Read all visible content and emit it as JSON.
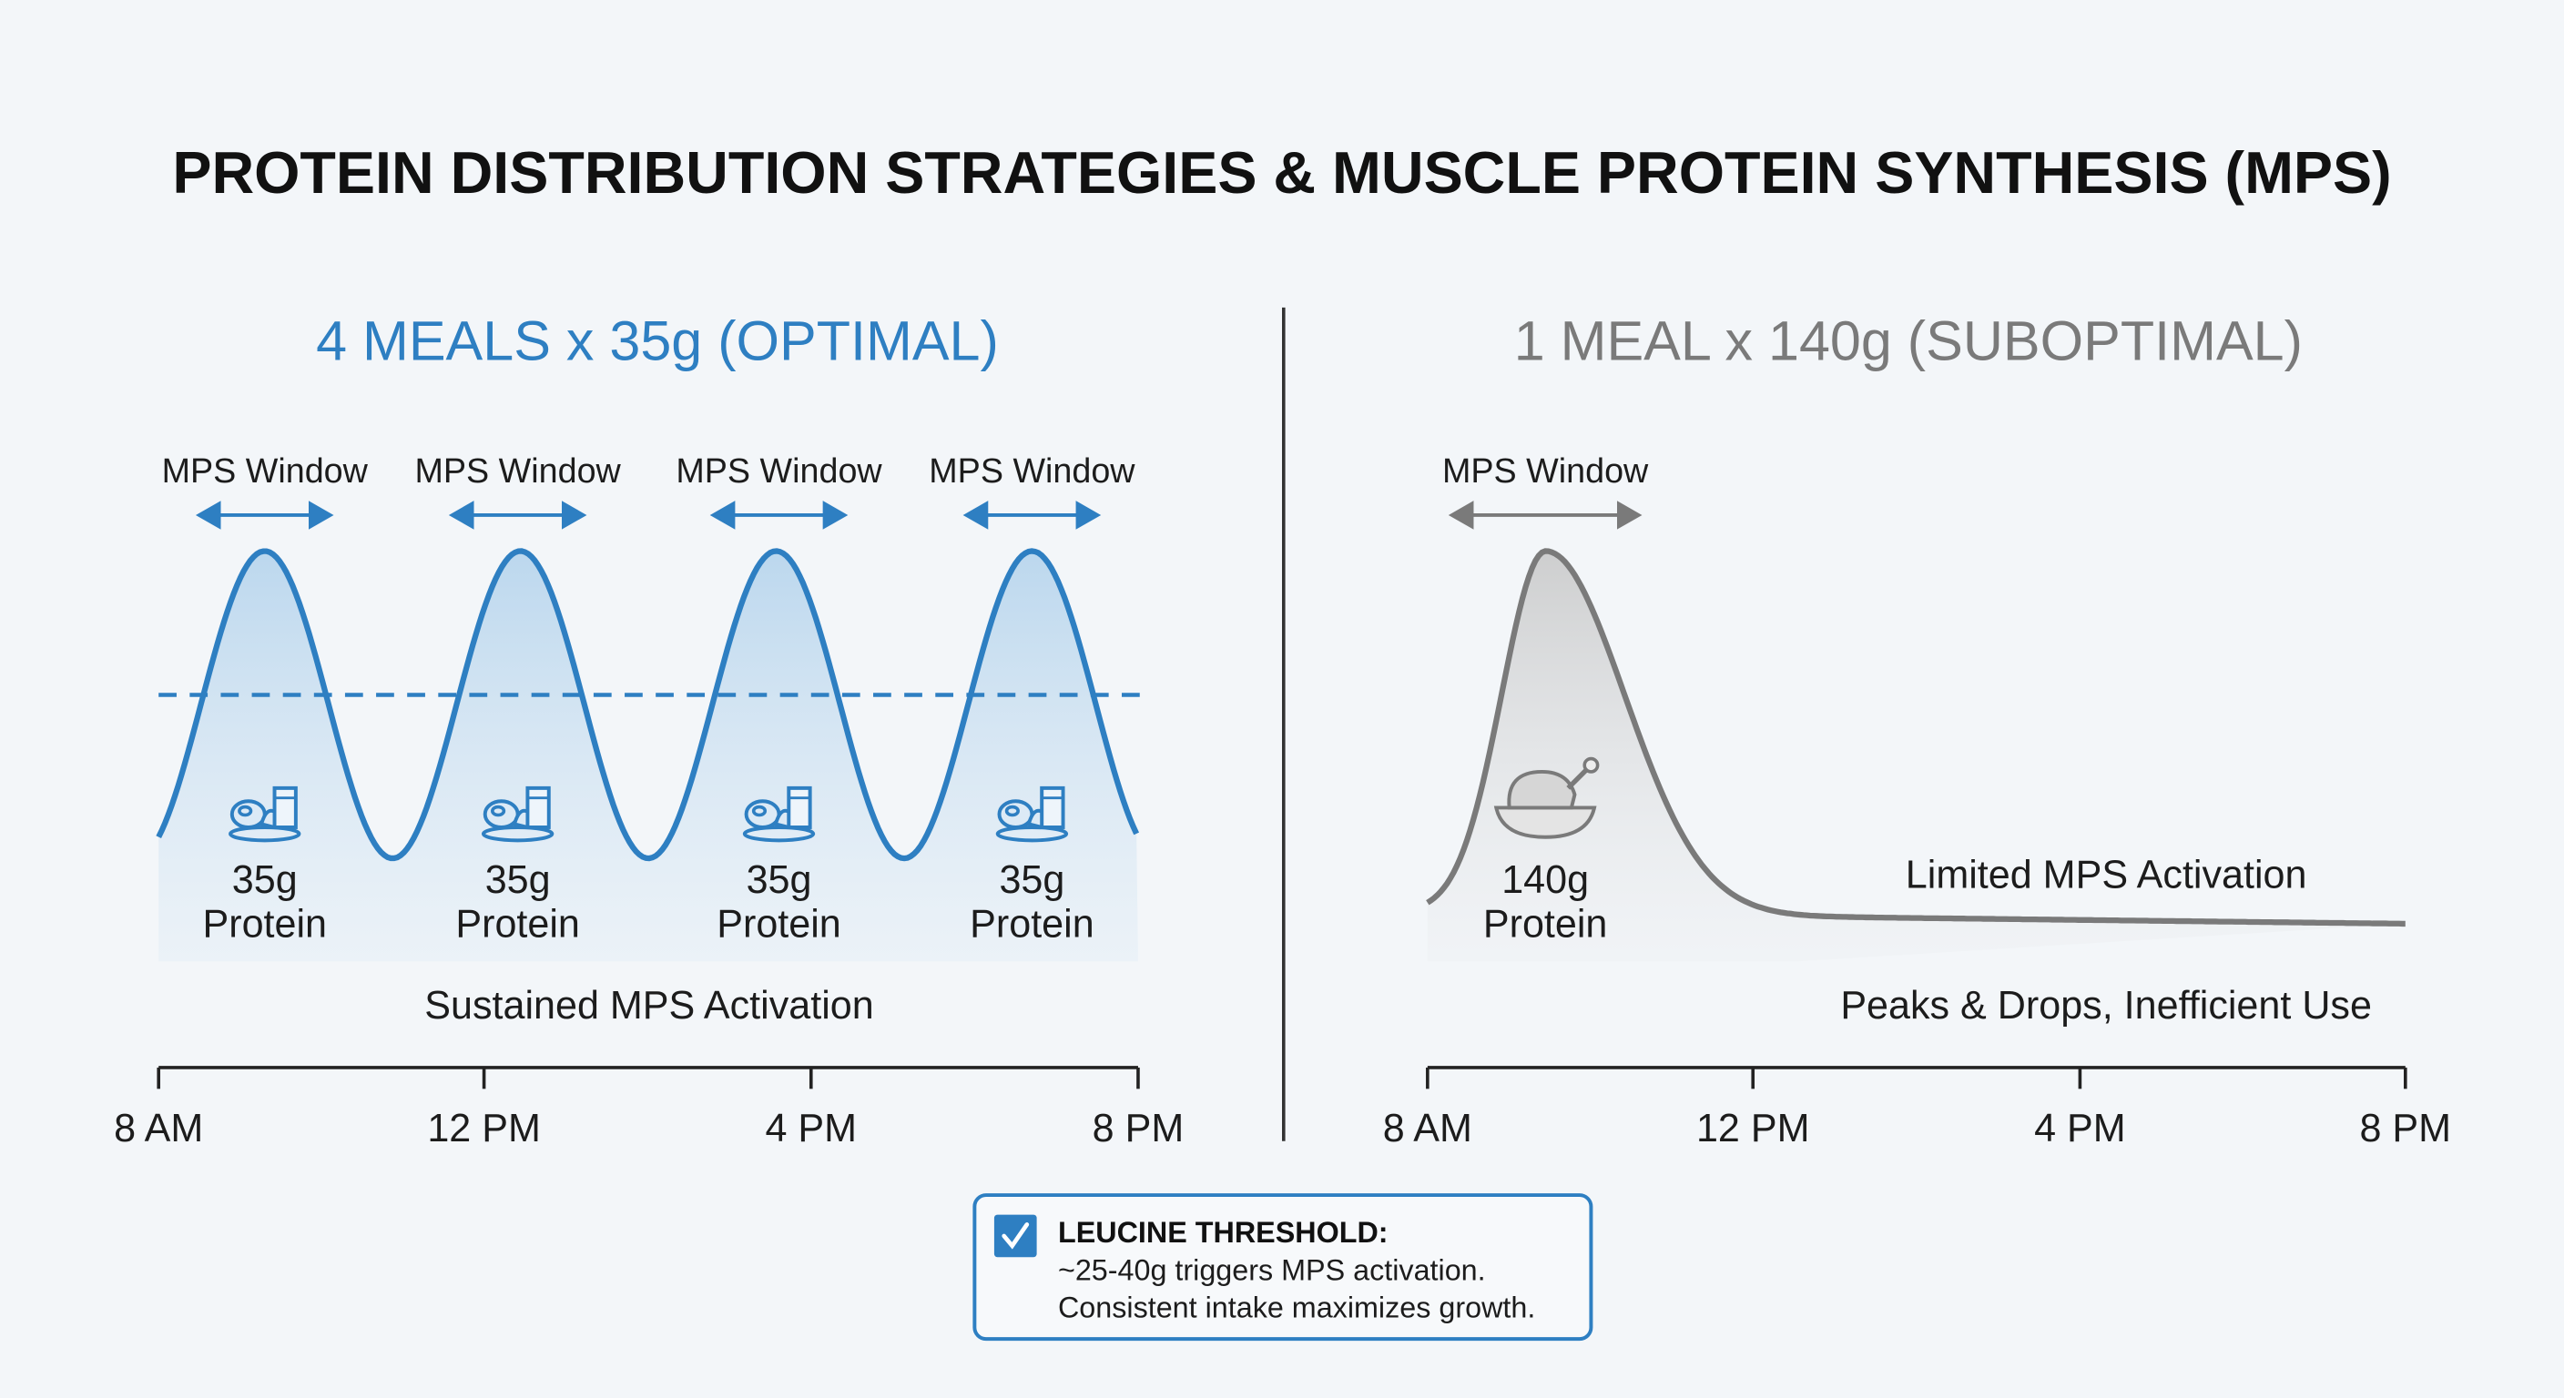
{
  "title": "PROTEIN DISTRIBUTION STRATEGIES & MUSCLE PROTEIN SYNTHESIS (MPS)",
  "colors": {
    "optimal": "#2e7fc2",
    "suboptimal": "#7a7a7a",
    "background": "#f3f6f9"
  },
  "left": {
    "heading": "4 MEALS x 35g (OPTIMAL)",
    "window_label": "MPS Window",
    "meals": [
      {
        "amount": "35g",
        "unit": "Protein",
        "icon": "meal-icon"
      },
      {
        "amount": "35g",
        "unit": "Protein",
        "icon": "meal-icon"
      },
      {
        "amount": "35g",
        "unit": "Protein",
        "icon": "meal-icon"
      },
      {
        "amount": "35g",
        "unit": "Protein",
        "icon": "meal-icon"
      }
    ],
    "caption": "Sustained MPS Activation",
    "ticks": [
      "8 AM",
      "12 PM",
      "4 PM",
      "8 PM"
    ]
  },
  "right": {
    "heading": "1 MEAL x 140g (SUBOPTIMAL)",
    "window_label": "MPS Window",
    "meal": {
      "amount": "140g",
      "unit": "Protein",
      "icon": "chicken-bowl-icon"
    },
    "curve_label": "Limited MPS Activation",
    "caption": "Peaks & Drops, Inefficient Use",
    "ticks": [
      "8 AM",
      "12 PM",
      "4 PM",
      "8 PM"
    ]
  },
  "note": {
    "icon": "checkbox-checked-icon",
    "heading": "LEUCINE THRESHOLD:",
    "line1": "~25-40g triggers MPS activation.",
    "line2": "Consistent intake maximizes growth."
  },
  "chart_data": [
    {
      "type": "line",
      "title": "4 MEALS x 35g (OPTIMAL)",
      "x_range_hours": [
        8,
        20
      ],
      "tick_labels": [
        "8 AM",
        "12 PM",
        "4 PM",
        "8 PM"
      ],
      "peak_times_hours": [
        9.3,
        12.4,
        15.6,
        18.7
      ],
      "threshold_line": "dashed",
      "pattern": "repeating peaks"
    },
    {
      "type": "line",
      "title": "1 MEAL x 140g (SUBOPTIMAL)",
      "x_range_hours": [
        8,
        20
      ],
      "tick_labels": [
        "8 AM",
        "12 PM",
        "4 PM",
        "8 PM"
      ],
      "peak_times_hours": [
        9.45
      ],
      "pattern": "single peak then flat"
    }
  ]
}
